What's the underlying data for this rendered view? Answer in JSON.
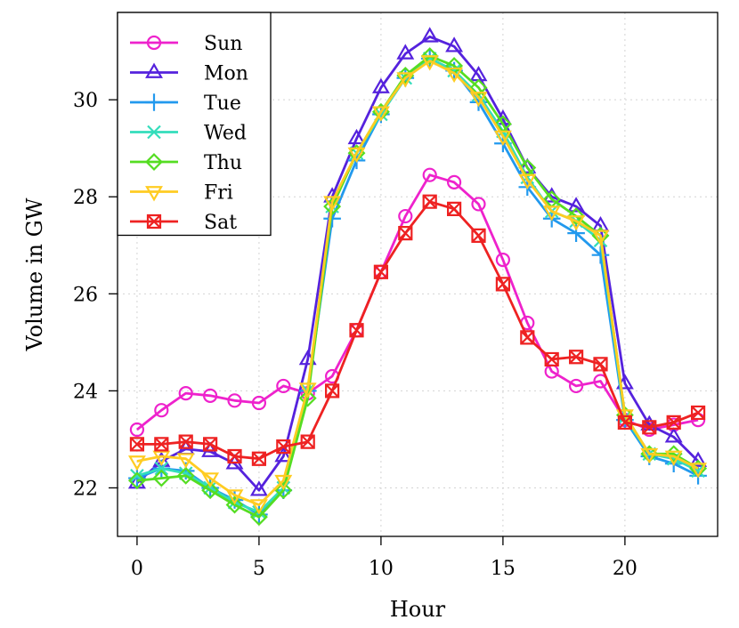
{
  "chart_data": {
    "type": "line",
    "title": "",
    "xlabel": "Hour",
    "ylabel": "Volume in GW",
    "xlim": [
      -0.8,
      23.8
    ],
    "ylim": [
      21.0,
      31.8
    ],
    "xticks": [
      0,
      5,
      10,
      15,
      20
    ],
    "yticks": [
      22,
      24,
      26,
      28,
      30
    ],
    "grid": true,
    "legend_position": "top-left",
    "x": [
      0,
      1,
      2,
      3,
      4,
      5,
      6,
      7,
      8,
      9,
      10,
      11,
      12,
      13,
      14,
      15,
      16,
      17,
      18,
      19,
      20,
      21,
      22,
      23
    ],
    "series": [
      {
        "name": "Sun",
        "color": "#ee22cc",
        "marker": "circle",
        "values": [
          23.2,
          23.6,
          23.95,
          23.9,
          23.8,
          23.75,
          24.1,
          23.95,
          24.3,
          25.25,
          26.45,
          27.6,
          28.45,
          28.3,
          27.85,
          26.7,
          25.4,
          24.4,
          24.1,
          24.2,
          23.4,
          23.2,
          23.3,
          23.4
        ]
      },
      {
        "name": "Mon",
        "color": "#5522dd",
        "marker": "triangle-up",
        "values": [
          22.1,
          22.55,
          22.8,
          22.75,
          22.5,
          21.95,
          22.65,
          24.65,
          28.0,
          29.2,
          30.25,
          30.95,
          31.3,
          31.1,
          30.5,
          29.6,
          28.6,
          28.0,
          27.8,
          27.4,
          24.15,
          23.3,
          23.05,
          22.55
        ]
      },
      {
        "name": "Tue",
        "color": "#2299ee",
        "marker": "plus",
        "values": [
          22.2,
          22.4,
          22.35,
          22.0,
          21.75,
          21.45,
          21.95,
          24.0,
          27.55,
          28.75,
          29.7,
          30.45,
          30.85,
          30.6,
          29.95,
          29.1,
          28.2,
          27.55,
          27.25,
          26.8,
          23.4,
          22.65,
          22.5,
          22.25
        ]
      },
      {
        "name": "Wed",
        "color": "#33ddbb",
        "marker": "cross",
        "values": [
          22.25,
          22.4,
          22.3,
          22.0,
          21.7,
          21.5,
          22.0,
          24.0,
          27.8,
          28.9,
          29.7,
          30.45,
          30.85,
          30.6,
          30.1,
          29.35,
          28.4,
          27.7,
          27.5,
          27.1,
          23.45,
          22.7,
          22.6,
          22.35
        ]
      },
      {
        "name": "Thu",
        "color": "#55dd22",
        "marker": "diamond",
        "values": [
          22.15,
          22.2,
          22.25,
          21.95,
          21.65,
          21.4,
          21.95,
          23.85,
          27.8,
          28.9,
          29.75,
          30.5,
          30.9,
          30.7,
          30.25,
          29.5,
          28.6,
          27.95,
          27.6,
          27.2,
          23.5,
          22.7,
          22.7,
          22.4
        ]
      },
      {
        "name": "Fri",
        "color": "#ffcc22",
        "marker": "triangle-down",
        "values": [
          22.55,
          22.65,
          22.6,
          22.2,
          21.85,
          21.65,
          22.15,
          24.05,
          27.9,
          28.9,
          29.75,
          30.45,
          30.8,
          30.55,
          30.05,
          29.25,
          28.35,
          27.7,
          27.5,
          27.2,
          23.5,
          22.7,
          22.65,
          22.4
        ]
      },
      {
        "name": "Sat",
        "color": "#ee2222",
        "marker": "square-x",
        "values": [
          22.9,
          22.9,
          22.95,
          22.9,
          22.65,
          22.6,
          22.85,
          22.95,
          24.0,
          25.25,
          26.45,
          27.25,
          27.9,
          27.75,
          27.2,
          26.2,
          25.1,
          24.65,
          24.7,
          24.55,
          23.35,
          23.25,
          23.35,
          23.55
        ]
      }
    ]
  }
}
